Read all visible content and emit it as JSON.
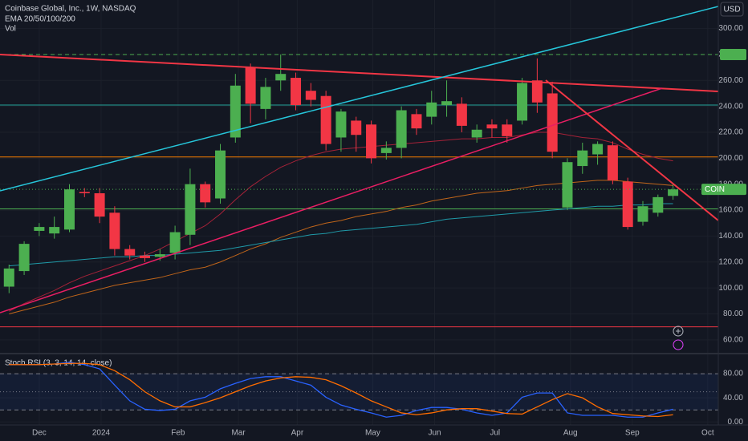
{
  "chart_data": [
    {
      "type": "candlestick",
      "title": "Coinbase Global, Inc., 1W, NASDAQ",
      "subtitles": [
        "EMA 20/50/100/200",
        "Vol"
      ],
      "currency": "USD",
      "symbol": "COIN",
      "up_color": "#4caf50",
      "down_color": "#f23645",
      "open": [
        101,
        113,
        144,
        142,
        145,
        174,
        173,
        158,
        130,
        125,
        124,
        127,
        141,
        180,
        169,
        216,
        270,
        238,
        260,
        262,
        252,
        248,
        216,
        229,
        226,
        204,
        208,
        234,
        232,
        241,
        242,
        216,
        226,
        226,
        229,
        260,
        250,
        162,
        194,
        203,
        210,
        182,
        151,
        158,
        171
      ],
      "high": [
        118,
        136,
        150,
        155,
        180,
        177,
        177,
        163,
        133,
        128,
        130,
        148,
        192,
        182,
        211,
        265,
        273,
        262,
        280,
        266,
        258,
        252,
        238,
        232,
        229,
        213,
        240,
        238,
        252,
        260,
        247,
        226,
        230,
        230,
        262,
        277,
        259,
        200,
        212,
        213,
        213,
        185,
        167,
        172,
        180
      ],
      "low": [
        96,
        110,
        140,
        138,
        143,
        170,
        150,
        125,
        122,
        120,
        121,
        122,
        133,
        162,
        165,
        212,
        227,
        230,
        252,
        237,
        240,
        206,
        205,
        205,
        196,
        199,
        200,
        218,
        226,
        232,
        220,
        212,
        216,
        212,
        226,
        235,
        200,
        160,
        188,
        195,
        180,
        145,
        148,
        155,
        168
      ],
      "close": [
        115,
        134,
        147,
        147,
        176,
        173,
        155,
        130,
        125,
        123,
        126,
        143,
        180,
        166,
        206,
        256,
        242,
        255,
        265,
        241,
        245,
        211,
        236,
        218,
        200,
        208,
        237,
        223,
        243,
        244,
        225,
        222,
        223,
        217,
        258,
        243,
        205,
        197,
        206,
        211,
        183,
        147,
        163,
        170,
        176
      ],
      "overlays": [
        {
          "color": "#a52238",
          "values": [
            82,
            88,
            93,
            98,
            104,
            109,
            113,
            117,
            121,
            125,
            130,
            136,
            142,
            148,
            157,
            168,
            178,
            186,
            193,
            198,
            202,
            205,
            207,
            208,
            209,
            210,
            211,
            212,
            213,
            214,
            215,
            215,
            216,
            216,
            218,
            220,
            220,
            218,
            216,
            215,
            212,
            207,
            203,
            200,
            198
          ]
        },
        {
          "color": "#c0651a",
          "values": [
            80,
            83,
            86,
            89,
            93,
            96,
            99,
            102,
            104,
            106,
            108,
            111,
            114,
            116,
            120,
            125,
            130,
            134,
            139,
            143,
            147,
            150,
            152,
            155,
            157,
            159,
            162,
            164,
            167,
            169,
            171,
            173,
            174,
            175,
            177,
            179,
            180,
            181,
            182,
            183,
            183,
            182,
            181,
            180,
            179
          ]
        },
        {
          "color": "#1f9aa8",
          "values": [
            117,
            118,
            119,
            120,
            121,
            122,
            123,
            124,
            124,
            125,
            125,
            126,
            127,
            128,
            129,
            131,
            133,
            135,
            137,
            139,
            141,
            142,
            144,
            145,
            146,
            147,
            148,
            149,
            151,
            153,
            154,
            155,
            156,
            157,
            158,
            159,
            160,
            161,
            162,
            163,
            163,
            164,
            164,
            165,
            165
          ]
        }
      ],
      "levels": [
        {
          "value": 280,
          "color": "#4caf50",
          "dash": true
        },
        {
          "value": 241,
          "color": "#26a69a",
          "dash": false
        },
        {
          "value": 201,
          "color": "#f57c00",
          "dash": false
        },
        {
          "value": 161,
          "color": "#4caf50",
          "dash": false
        },
        {
          "value": 70,
          "color": "#f23645",
          "dash": false
        }
      ],
      "ylim": [
        50,
        322
      ],
      "yticks": [
        {
          "value": 60,
          "label": "60.00"
        },
        {
          "value": 80,
          "label": "80.00"
        },
        {
          "value": 100,
          "label": "100.00"
        },
        {
          "value": 120,
          "label": "120.00"
        },
        {
          "value": 140,
          "label": "140.00"
        },
        {
          "value": 160,
          "label": "160.00"
        },
        {
          "value": 180,
          "label": "180.00"
        },
        {
          "value": 200,
          "label": "200.00"
        },
        {
          "value": 220,
          "label": "220.00"
        },
        {
          "value": 240,
          "label": "240.00"
        },
        {
          "value": 260,
          "label": "260.00"
        },
        {
          "value": 280,
          "label": "280.00"
        },
        {
          "value": 300,
          "label": "300.00"
        }
      ],
      "xlim": [
        -0.6,
        47
      ],
      "xticks": [
        {
          "value": 2,
          "label": "Dec"
        },
        {
          "value": 6.1,
          "label": "2024"
        },
        {
          "value": 11.2,
          "label": "Feb"
        },
        {
          "value": 15.2,
          "label": "Mar"
        },
        {
          "value": 19.1,
          "label": "Apr"
        },
        {
          "value": 24.1,
          "label": "May"
        },
        {
          "value": 28.2,
          "label": "Jun"
        },
        {
          "value": 32.2,
          "label": "Jul"
        },
        {
          "value": 37.2,
          "label": "Aug"
        },
        {
          "value": 41.3,
          "label": "Sep"
        },
        {
          "value": 46.3,
          "label": "Oct"
        }
      ],
      "grid": true
    },
    {
      "type": "line",
      "title": "Stoch RSI (3, 3, 14, 14, close)",
      "series": [
        {
          "color": "#2962ff",
          "values": [
            95,
            95,
            95,
            96,
            99,
            95,
            88,
            61,
            35,
            21,
            19,
            21,
            35,
            41,
            55,
            64,
            72,
            75,
            75,
            68,
            61,
            41,
            28,
            21,
            15,
            8,
            11,
            19,
            24,
            24,
            21,
            15,
            11,
            15,
            41,
            48,
            48,
            15,
            11,
            11,
            11,
            8,
            8,
            15,
            21
          ]
        },
        {
          "color": "#ff6d00",
          "values": [
            95,
            95,
            95,
            96,
            97,
            97,
            95,
            85,
            70,
            50,
            35,
            25,
            25,
            32,
            40,
            50,
            60,
            68,
            73,
            75,
            74,
            70,
            60,
            48,
            35,
            25,
            15,
            12,
            15,
            20,
            22,
            22,
            18,
            14,
            13,
            25,
            37,
            47,
            40,
            25,
            14,
            12,
            10,
            9,
            12
          ]
        }
      ],
      "levels": [
        80,
        50,
        20
      ],
      "ylim": [
        -5,
        112
      ],
      "yticks": [
        {
          "value": 0,
          "label": "0.00"
        },
        {
          "value": 40,
          "label": "40.00"
        },
        {
          "value": 80,
          "label": "80.00"
        }
      ],
      "grid": true
    }
  ]
}
